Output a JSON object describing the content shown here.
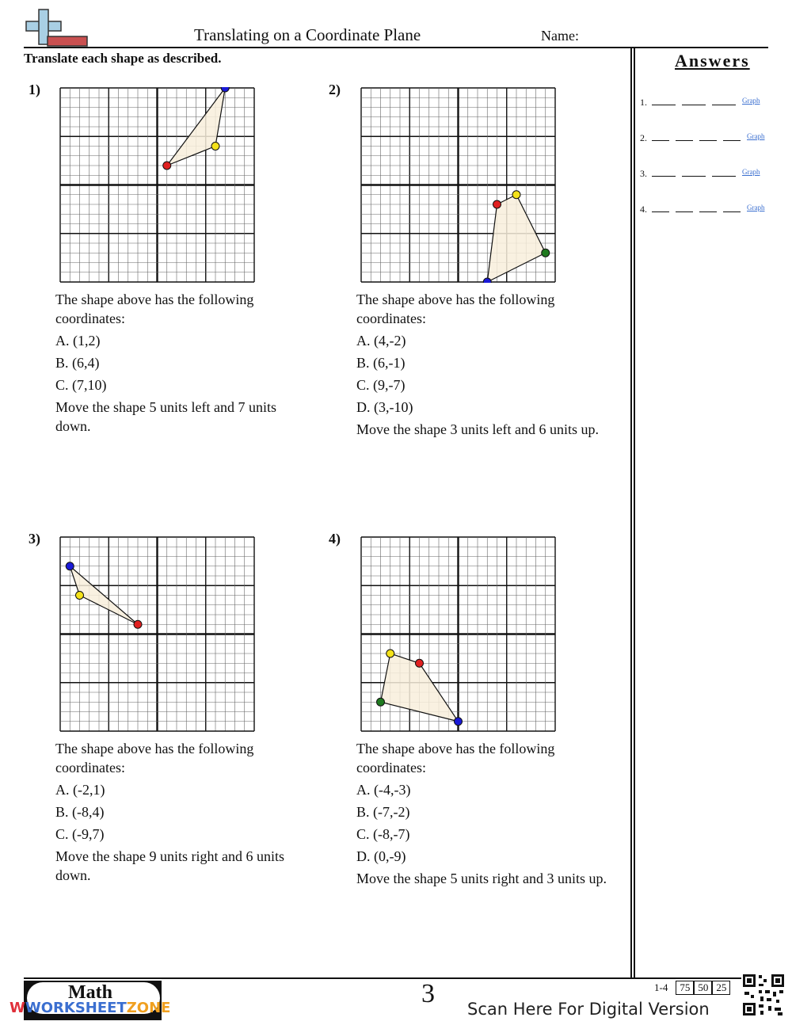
{
  "header": {
    "title": "Translating on a Coordinate Plane",
    "name_label": "Name:"
  },
  "instructions": "Translate each shape as described.",
  "answers": {
    "title": "Answers",
    "items": [
      {
        "num": "1.",
        "blanks": 3,
        "graph_label": "Graph"
      },
      {
        "num": "2.",
        "blanks": 4,
        "graph_label": "Graph"
      },
      {
        "num": "3.",
        "blanks": 3,
        "graph_label": "Graph"
      },
      {
        "num": "4.",
        "blanks": 4,
        "graph_label": "Graph"
      }
    ]
  },
  "colors": {
    "red": "#e02020",
    "yellow": "#f4e21a",
    "blue": "#1a1ad8",
    "green": "#1f7a1f",
    "fill": "#f8efdc",
    "accent": "#3b6fd0"
  },
  "problems": [
    {
      "num": "1)",
      "intro": "The shape above has the following coordinates:",
      "coords": [
        "A. (1,2)",
        "B. (6,4)",
        "C. (7,10)"
      ],
      "instruction": "Move the shape 5 units left and 7 units down.",
      "points": [
        {
          "x": 1,
          "y": 2,
          "color": "red"
        },
        {
          "x": 6,
          "y": 4,
          "color": "yellow"
        },
        {
          "x": 7,
          "y": 10,
          "color": "blue"
        }
      ]
    },
    {
      "num": "2)",
      "intro": "The shape above has the following coordinates:",
      "coords": [
        "A. (4,-2)",
        "B. (6,-1)",
        "C. (9,-7)",
        "D. (3,-10)"
      ],
      "instruction": "Move the shape 3 units left and 6 units up.",
      "points": [
        {
          "x": 4,
          "y": -2,
          "color": "red"
        },
        {
          "x": 6,
          "y": -1,
          "color": "yellow"
        },
        {
          "x": 9,
          "y": -7,
          "color": "green"
        },
        {
          "x": 3,
          "y": -10,
          "color": "blue"
        }
      ]
    },
    {
      "num": "3)",
      "intro": "The shape above has the following coordinates:",
      "coords": [
        "A. (-2,1)",
        "B. (-8,4)",
        "C. (-9,7)"
      ],
      "instruction": "Move the shape 9 units right and 6 units down.",
      "points": [
        {
          "x": -2,
          "y": 1,
          "color": "red"
        },
        {
          "x": -8,
          "y": 4,
          "color": "yellow"
        },
        {
          "x": -9,
          "y": 7,
          "color": "blue"
        }
      ]
    },
    {
      "num": "4)",
      "intro": "The shape above has the following coordinates:",
      "coords": [
        "A. (-4,-3)",
        "B. (-7,-2)",
        "C. (-8,-7)",
        "D. (0,-9)"
      ],
      "instruction": "Move the shape 5 units right and 3 units up.",
      "points": [
        {
          "x": -4,
          "y": -3,
          "color": "red"
        },
        {
          "x": -7,
          "y": -2,
          "color": "yellow"
        },
        {
          "x": -8,
          "y": -7,
          "color": "green"
        },
        {
          "x": 0,
          "y": -9,
          "color": "blue"
        }
      ]
    }
  ],
  "footer": {
    "page_number": "3",
    "scan_text": "Scan Here For Digital Version",
    "score_range": "1-4",
    "scores": [
      "75",
      "50",
      "25"
    ],
    "badge_text": "Math",
    "brand_a": "WORKSHEET",
    "brand_b": "ZONE"
  }
}
